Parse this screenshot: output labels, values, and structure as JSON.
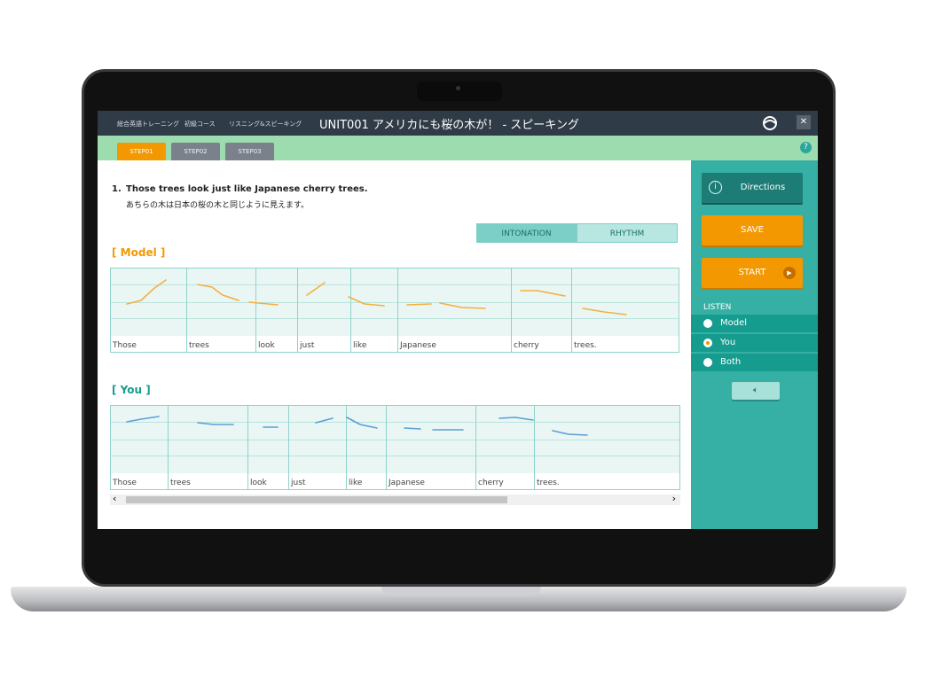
{
  "header": {
    "breadcrumbs": [
      "総合英語トレーニング",
      "初級コース",
      "リスニング&スピーキング"
    ],
    "title": "UNIT001 アメリカにも桜の木が！ - スピーキング",
    "close": "✕"
  },
  "steps": [
    {
      "label": "STEP01",
      "active": true
    },
    {
      "label": "STEP02"
    },
    {
      "label": "STEP03"
    }
  ],
  "help": "?",
  "question": {
    "number": "1.",
    "english": "Those trees look just like Japanese cherry trees.",
    "japanese": "あちらの木は日本の桜の木と同じように見えます。"
  },
  "tabs": [
    {
      "label": "INTONATION",
      "active": true
    },
    {
      "label": "RHYTHM"
    }
  ],
  "model": {
    "label": "[ Model ]",
    "words": [
      "Those",
      "trees",
      "look",
      "just",
      "like",
      "Japanese",
      "cherry",
      "trees."
    ]
  },
  "you": {
    "label": "[ You ]",
    "words": [
      "Those",
      "trees",
      "look",
      "just",
      "like",
      "Japanese",
      "cherry",
      "trees."
    ]
  },
  "scrollbar": {
    "left": "‹",
    "right": "›"
  },
  "sidebar": {
    "directions": "Directions",
    "save": "SAVE",
    "start": "START",
    "listen_label": "LISTEN",
    "listen_options": [
      "Model",
      "You",
      "Both"
    ],
    "listen_selected": "You"
  },
  "colors": {
    "accent": "#f39800",
    "teal": "#36b0a5",
    "model_curve": "#f4b040",
    "you_curve": "#5a9fd6"
  }
}
